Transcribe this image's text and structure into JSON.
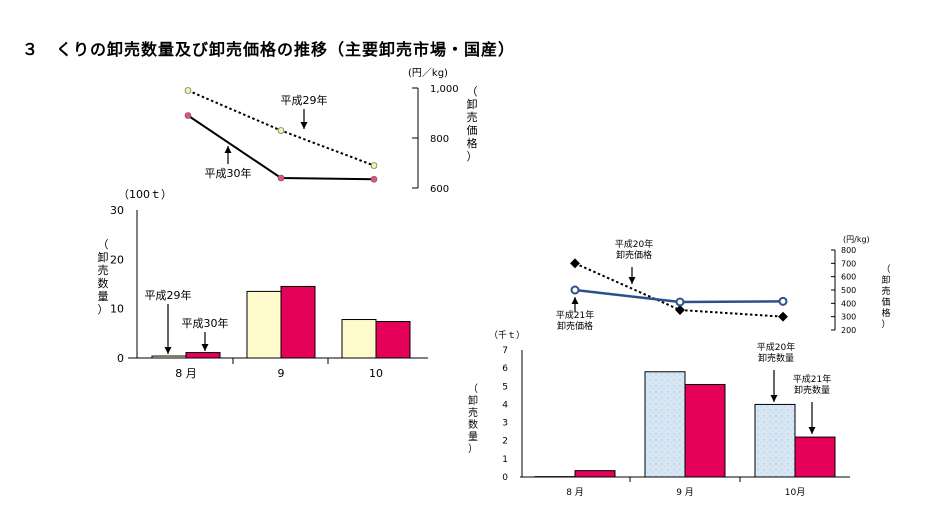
{
  "page": {
    "title": "３　くりの卸売数量及び卸売価格の推移（主要卸売市場・国産）"
  },
  "chart_data": [
    {
      "id": "left_price",
      "type": "line",
      "categories": [
        "8月",
        "9",
        "10"
      ],
      "yunit": "(円／kg)",
      "ylabel": "（卸売価格）",
      "ylim": [
        600,
        1000
      ],
      "yticks": [
        "1,000",
        "800",
        "600"
      ],
      "series": [
        {
          "name": "平成29年",
          "values": [
            990,
            830,
            690
          ],
          "color": "#000000",
          "marker_fill": "#f5f0a8",
          "dashed": true
        },
        {
          "name": "平成30年",
          "values": [
            890,
            640,
            635
          ],
          "color": "#000000",
          "marker_fill": "#e8527a",
          "dashed": false
        }
      ],
      "annotations": [
        "平成29年",
        "平成30年"
      ]
    },
    {
      "id": "left_volume",
      "type": "bar",
      "categories": [
        "8 月",
        "9",
        "10"
      ],
      "yunit": "（100ｔ）",
      "ylabel": "（卸売数量）",
      "ylim": [
        0,
        30
      ],
      "yticks": [
        "30",
        "20",
        "10",
        "0"
      ],
      "series": [
        {
          "name": "平成29年",
          "values": [
            0.4,
            13.5,
            7.8
          ],
          "color": "#fffacc"
        },
        {
          "name": "平成30年",
          "values": [
            1.1,
            14.5,
            7.4
          ],
          "color": "#e5005a"
        }
      ],
      "annotations": [
        "平成29年",
        "平成30年"
      ]
    },
    {
      "id": "right_price",
      "type": "line",
      "categories": [
        "8月",
        "9月",
        "10月"
      ],
      "yunit": "(円/kg)",
      "ylabel": "（卸売価格）",
      "ylim": [
        200,
        800
      ],
      "yticks": [
        "800",
        "700",
        "600",
        "500",
        "400",
        "300",
        "200"
      ],
      "series": [
        {
          "name": "平成20年",
          "values": [
            700,
            350,
            300
          ],
          "color": "#000000",
          "dashed": true
        },
        {
          "name": "平成21年",
          "values": [
            500,
            410,
            415
          ],
          "color": "#2b4f8f",
          "dashed": false
        }
      ],
      "annotations": [
        "平成20年\n卸売価格",
        "平成21年\n卸売価格"
      ]
    },
    {
      "id": "right_volume",
      "type": "bar",
      "categories": [
        "8 月",
        "9 月",
        "10月"
      ],
      "yunit": "（千ｔ）",
      "ylabel": "（卸売数量）",
      "ylim": [
        0,
        7
      ],
      "yticks": [
        "7",
        "6",
        "5",
        "4",
        "3",
        "2",
        "1",
        "0"
      ],
      "series": [
        {
          "name": "平成20年",
          "values": [
            0.02,
            5.8,
            4.0
          ],
          "color": "#d6e6f3"
        },
        {
          "name": "平成21年",
          "values": [
            0.35,
            5.1,
            2.2
          ],
          "color": "#e5005a"
        }
      ],
      "annotations": [
        "平成20年\n卸売数量",
        "平成21年\n卸売数量"
      ]
    }
  ]
}
